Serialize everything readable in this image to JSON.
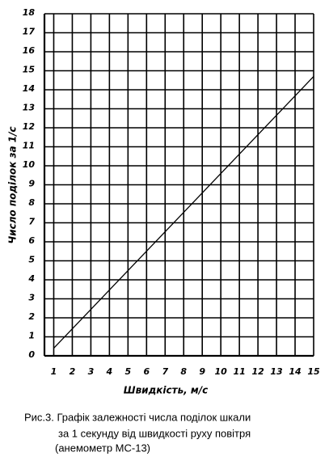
{
  "chart_data": {
    "type": "line",
    "y_label": "Число поділок за 1/с",
    "x_label": "Швидкість, м/с",
    "caption": [
      "Рис.3. Графік залежності числа поділок шкали",
      "за 1 секунду від швидкості руху повітря",
      "(анемометр МС-13)"
    ],
    "x": [
      1,
      15
    ],
    "series": [
      {
        "values": [
          0.4,
          14.7
        ],
        "color": "#000000"
      }
    ],
    "xlim": [
      0.5,
      15
    ],
    "ylim": [
      0,
      18
    ],
    "xticks": [
      1,
      2,
      3,
      4,
      5,
      6,
      7,
      8,
      9,
      10,
      11,
      12,
      13,
      14,
      15
    ],
    "yticks": [
      0,
      1,
      2,
      3,
      4,
      5,
      6,
      7,
      8,
      9,
      10,
      11,
      12,
      13,
      14,
      15,
      16,
      17,
      18
    ],
    "grid": true
  }
}
